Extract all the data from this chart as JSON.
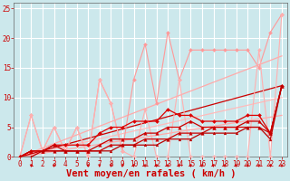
{
  "bg_color": "#cce8ec",
  "grid_color": "#ffffff",
  "xlim": [
    -0.5,
    23.5
  ],
  "ylim": [
    0,
    26
  ],
  "xticks": [
    0,
    1,
    2,
    3,
    4,
    5,
    6,
    7,
    8,
    9,
    10,
    11,
    12,
    13,
    14,
    15,
    16,
    17,
    18,
    19,
    20,
    21,
    22,
    23
  ],
  "yticks": [
    0,
    5,
    10,
    15,
    20,
    25
  ],
  "xlabel": "Vent moyen/en rafales ( km/h )",
  "xlabel_color": "#cc0000",
  "xlabel_fontsize": 7.5,
  "tick_color": "#cc0000",
  "tick_fontsize": 5.5,
  "series": [
    {
      "x": [
        0,
        1,
        2,
        3,
        4,
        5,
        6,
        7,
        8,
        9,
        10,
        11,
        12,
        13,
        14,
        15,
        16,
        17,
        18,
        19,
        20,
        21,
        22,
        23
      ],
      "y": [
        0,
        7,
        1,
        5,
        1,
        5,
        0,
        13,
        9,
        1,
        13,
        19,
        9,
        21,
        13,
        18,
        18,
        18,
        18,
        18,
        18,
        15,
        21,
        24
      ],
      "color": "#ff9999",
      "marker": "D",
      "markersize": 2,
      "linewidth": 0.8,
      "zorder": 3
    },
    {
      "x": [
        0,
        1,
        2,
        3,
        4,
        5,
        6,
        7,
        8,
        9,
        10,
        11,
        12,
        13,
        14,
        15,
        16,
        17,
        18,
        19,
        20,
        21,
        22,
        23
      ],
      "y": [
        0,
        7,
        1,
        5,
        1,
        5,
        0,
        13,
        9,
        1,
        0,
        8,
        0,
        0,
        13,
        0,
        0,
        0,
        0,
        0,
        0,
        18,
        0,
        24
      ],
      "color": "#ffb0b0",
      "marker": "D",
      "markersize": 2,
      "linewidth": 0.8,
      "zorder": 3
    },
    {
      "x": [
        0,
        23
      ],
      "y": [
        0,
        17
      ],
      "color": "#ffaaaa",
      "marker": "None",
      "markersize": 0,
      "linewidth": 0.9,
      "zorder": 2
    },
    {
      "x": [
        0,
        23
      ],
      "y": [
        0,
        10
      ],
      "color": "#ffbbbb",
      "marker": "None",
      "markersize": 0,
      "linewidth": 0.9,
      "zorder": 2
    },
    {
      "x": [
        0,
        23
      ],
      "y": [
        0,
        7
      ],
      "color": "#ffaaaa",
      "marker": "None",
      "markersize": 0,
      "linewidth": 0.9,
      "zorder": 2
    },
    {
      "x": [
        0,
        1,
        2,
        3,
        4,
        5,
        6,
        7,
        8,
        9,
        10,
        11,
        12,
        13,
        14,
        15,
        16,
        17,
        18,
        19,
        20,
        21,
        22,
        23
      ],
      "y": [
        0,
        1,
        1,
        2,
        2,
        2,
        2,
        4,
        5,
        5,
        6,
        6,
        6,
        8,
        7,
        7,
        6,
        6,
        6,
        6,
        7,
        7,
        4,
        12
      ],
      "color": "#dd0000",
      "marker": "D",
      "markersize": 2,
      "linewidth": 0.9,
      "zorder": 4
    },
    {
      "x": [
        0,
        1,
        2,
        3,
        4,
        5,
        6,
        7,
        8,
        9,
        10,
        11,
        12,
        13,
        14,
        15,
        16,
        17,
        18,
        19,
        20,
        21,
        22,
        23
      ],
      "y": [
        0,
        1,
        1,
        2,
        1,
        1,
        1,
        2,
        3,
        3,
        3,
        4,
        4,
        5,
        5,
        6,
        5,
        5,
        5,
        5,
        6,
        6,
        4,
        12
      ],
      "color": "#cc0000",
      "marker": "^",
      "markersize": 2.5,
      "linewidth": 0.9,
      "zorder": 4
    },
    {
      "x": [
        0,
        1,
        2,
        3,
        4,
        5,
        6,
        7,
        8,
        9,
        10,
        11,
        12,
        13,
        14,
        15,
        16,
        17,
        18,
        19,
        20,
        21,
        22,
        23
      ],
      "y": [
        0,
        1,
        1,
        1,
        1,
        1,
        1,
        1,
        2,
        2,
        2,
        3,
        3,
        3,
        4,
        4,
        4,
        5,
        5,
        5,
        5,
        5,
        4,
        12
      ],
      "color": "#cc0000",
      "marker": "^",
      "markersize": 2.5,
      "linewidth": 0.9,
      "zorder": 4
    },
    {
      "x": [
        0,
        1,
        2,
        3,
        4,
        5,
        6,
        7,
        8,
        9,
        10,
        11,
        12,
        13,
        14,
        15,
        16,
        17,
        18,
        19,
        20,
        21,
        22,
        23
      ],
      "y": [
        0,
        0,
        1,
        1,
        1,
        1,
        1,
        1,
        1,
        2,
        2,
        2,
        2,
        3,
        3,
        3,
        4,
        4,
        4,
        4,
        5,
        5,
        3,
        12
      ],
      "color": "#bb0000",
      "marker": "^",
      "markersize": 2,
      "linewidth": 0.9,
      "zorder": 4
    },
    {
      "x": [
        0,
        23
      ],
      "y": [
        0,
        12
      ],
      "color": "#cc0000",
      "marker": "None",
      "markersize": 0,
      "linewidth": 0.9,
      "zorder": 2
    }
  ],
  "arrows_x": [
    1,
    3,
    6,
    7,
    8,
    9,
    10,
    11,
    12,
    13,
    14,
    15,
    16,
    17,
    18,
    19,
    20,
    21,
    22,
    23
  ],
  "arrows_color": "#cc0000"
}
